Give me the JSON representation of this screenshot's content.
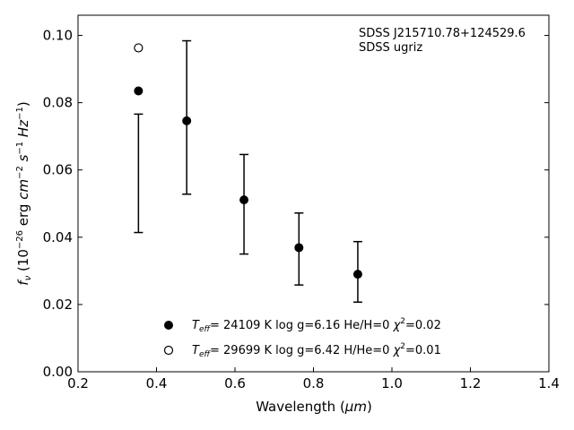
{
  "chart_data": {
    "type": "scatter",
    "xlabel_prefix": "Wavelength (",
    "xlabel_unit": "μm",
    "xlabel_suffix": ")",
    "ylabel_sym": "f",
    "ylabel_sub": "ν",
    "ylabel_a": " (10",
    "ylabel_exp1": "−26",
    "ylabel_b": " erg ",
    "ylabel_c": "cm",
    "ylabel_exp2": "−2",
    "ylabel_d": " s",
    "ylabel_exp3": "−1",
    "ylabel_e": " Hz",
    "ylabel_exp4": "−1",
    "ylabel_f": ")",
    "xlim": [
      0.2,
      1.4
    ],
    "ylim": [
      0.0,
      0.106
    ],
    "xticks": [
      0.2,
      0.4,
      0.6,
      0.8,
      1.0,
      1.2,
      1.4
    ],
    "xtick_labels": [
      "0.2",
      "0.4",
      "0.6",
      "0.8",
      "1.0",
      "1.2",
      "1.4"
    ],
    "yticks": [
      0.0,
      0.02,
      0.04,
      0.06,
      0.08,
      0.1
    ],
    "ytick_labels": [
      "0.00",
      "0.02",
      "0.04",
      "0.06",
      "0.08",
      "0.10"
    ],
    "annotation": [
      "SDSS J215710.78+124529.6",
      "SDSS ugriz"
    ],
    "observed": {
      "x": [
        0.354,
        0.477,
        0.623,
        0.763,
        0.913
      ],
      "y": [
        0.059,
        0.0756,
        0.0498,
        0.0365,
        0.0297
      ],
      "err": [
        0.0176,
        0.0228,
        0.0148,
        0.0107,
        0.009
      ]
    },
    "series": [
      {
        "name_sym": "T",
        "name_sub": "eff",
        "name_rest": "= 24109 K  log g=6.16  He/H=0  ",
        "name_chi": "χ",
        "name_chi_exp": "2",
        "name_end": "=0.02",
        "marker": "filled",
        "x": [
          0.354,
          0.477,
          0.623,
          0.763,
          0.913
        ],
        "y": [
          0.0835,
          0.0746,
          0.0511,
          0.0369,
          0.029
        ]
      },
      {
        "name_sym": "T",
        "name_sub": "eff",
        "name_rest": "= 29699 K  log g=6.42  H/He=0  ",
        "name_chi": "χ",
        "name_chi_exp": "2",
        "name_end": "=0.01",
        "marker": "open",
        "x": [
          0.354
        ],
        "y": [
          0.0963
        ]
      }
    ]
  }
}
